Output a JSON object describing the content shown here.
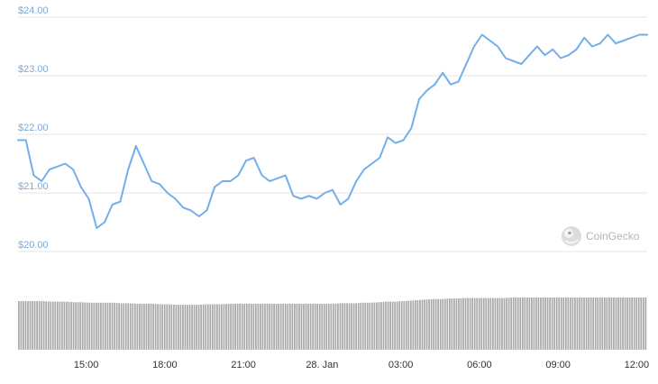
{
  "watermark": {
    "text": "CoinGecko",
    "logo_icon": "gecko-logo-icon"
  },
  "colors": {
    "line": "#72afea",
    "volume": "#a9a9a9",
    "grid": "#e6e6e6",
    "ytick": "#7fa7d6"
  },
  "chart_data": [
    {
      "type": "line",
      "title": "",
      "xlabel": "",
      "ylabel": "",
      "ylim": [
        20.0,
        24.0
      ],
      "y_ticks": [
        "$20.00",
        "$21.00",
        "$22.00",
        "$23.00",
        "$24.00"
      ],
      "y_tick_values": [
        20,
        21,
        22,
        23,
        24
      ],
      "x_ticks": [
        "15:00",
        "18:00",
        "21:00",
        "28. Jan",
        "03:00",
        "06:00",
        "09:00",
        "12:00"
      ],
      "x_tick_hours": [
        15,
        18,
        21,
        24,
        27,
        30,
        33,
        36
      ],
      "xlim_hours": [
        12.4,
        36.4
      ],
      "grid": true,
      "x_unit": "hour of 27 Jan (values past 24 fall on 28 Jan)",
      "x": [
        12.4,
        12.7,
        13.0,
        13.3,
        13.6,
        13.9,
        14.2,
        14.5,
        14.8,
        15.1,
        15.4,
        15.7,
        16.0,
        16.3,
        16.6,
        16.9,
        17.2,
        17.5,
        17.8,
        18.1,
        18.4,
        18.7,
        19.0,
        19.3,
        19.6,
        19.9,
        20.2,
        20.5,
        20.8,
        21.1,
        21.4,
        21.7,
        22.0,
        22.3,
        22.6,
        22.9,
        23.2,
        23.5,
        23.8,
        24.1,
        24.4,
        24.7,
        25.0,
        25.3,
        25.6,
        25.9,
        26.2,
        26.5,
        26.8,
        27.1,
        27.4,
        27.7,
        28.0,
        28.3,
        28.6,
        28.9,
        29.2,
        29.5,
        29.8,
        30.1,
        30.4,
        30.7,
        31.0,
        31.3,
        31.6,
        31.9,
        32.2,
        32.5,
        32.8,
        33.1,
        33.4,
        33.7,
        34.0,
        34.3,
        34.6,
        34.9,
        35.2,
        35.5,
        35.8,
        36.1,
        36.4
      ],
      "series": [
        {
          "values": [
            21.9,
            21.9,
            21.3,
            21.2,
            21.4,
            21.45,
            21.5,
            21.4,
            21.1,
            20.9,
            20.4,
            20.5,
            20.8,
            20.85,
            21.4,
            21.8,
            21.5,
            21.2,
            21.15,
            21.0,
            20.9,
            20.75,
            20.7,
            20.6,
            20.7,
            21.1,
            21.2,
            21.2,
            21.3,
            21.55,
            21.6,
            21.3,
            21.2,
            21.25,
            21.3,
            20.95,
            20.9,
            20.95,
            20.9,
            21.0,
            21.05,
            20.8,
            20.9,
            21.2,
            21.4,
            21.5,
            21.6,
            21.95,
            21.85,
            21.9,
            22.1,
            22.6,
            22.75,
            22.85,
            23.05,
            22.85,
            22.9,
            23.2,
            23.5,
            23.7,
            23.6,
            23.5,
            23.3,
            23.25,
            23.2,
            23.35,
            23.5,
            23.35,
            23.45,
            23.3,
            23.35,
            23.45,
            23.65,
            23.5,
            23.55,
            23.7,
            23.55,
            23.6,
            23.65,
            23.7,
            23.7
          ]
        }
      ]
    },
    {
      "type": "bar",
      "title": "",
      "x_unit": "hour of 27 Jan (values past 24 fall on 28 Jan)",
      "relative_volume": [
        0.93,
        0.93,
        0.93,
        0.93,
        0.92,
        0.92,
        0.92,
        0.91,
        0.91,
        0.9,
        0.9,
        0.9,
        0.9,
        0.89,
        0.89,
        0.88,
        0.88,
        0.88,
        0.87,
        0.87,
        0.86,
        0.86,
        0.86,
        0.86,
        0.87,
        0.87,
        0.87,
        0.88,
        0.88,
        0.88,
        0.88,
        0.88,
        0.88,
        0.88,
        0.88,
        0.88,
        0.88,
        0.88,
        0.88,
        0.88,
        0.88,
        0.89,
        0.89,
        0.89,
        0.9,
        0.9,
        0.91,
        0.92,
        0.92,
        0.93,
        0.94,
        0.95,
        0.96,
        0.97,
        0.97,
        0.98,
        0.98,
        0.99,
        0.99,
        0.99,
        0.99,
        0.99,
        0.99,
        1.0,
        1.0,
        1.0,
        1.0,
        1.0,
        1.0,
        1.0,
        1.0,
        1.0,
        1.0,
        1.0,
        1.0,
        1.0,
        1.0,
        1.0,
        1.0,
        1.0,
        1.0
      ]
    }
  ]
}
